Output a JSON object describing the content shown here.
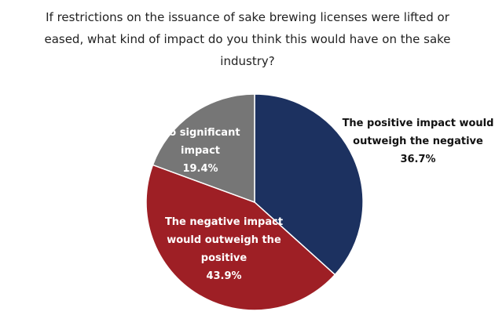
{
  "chart_data": {
    "type": "pie",
    "title": "If restrictions on the issuance of sake brewing licenses were lifted or eased, what kind of impact do you think this would have on the sake industry?",
    "categories": [
      "The positive impact would outweigh the negative",
      "The negative impact would outweigh the positive",
      "No significant impact"
    ],
    "values": [
      36.7,
      43.9,
      19.4
    ],
    "value_labels": [
      "36.7%",
      "43.9%",
      "19.4%"
    ],
    "colors": [
      "#1c3160",
      "#9e1f25",
      "#767676"
    ]
  }
}
